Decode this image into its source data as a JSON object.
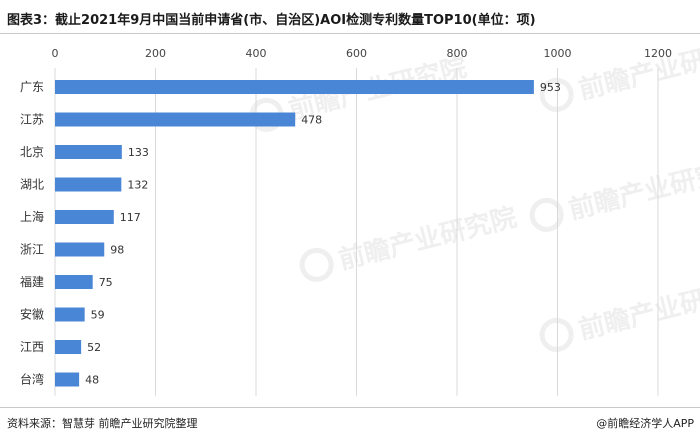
{
  "header": {
    "title": "图表3：截止2021年9月中国当前申请省(市、自治区)AOI检测专利数量TOP10(单位：项)"
  },
  "footer": {
    "source": "资料来源：智慧芽 前瞻产业研究院整理",
    "credit": "@前瞻经济学人APP"
  },
  "watermark": {
    "text": "前瞻产业研究院"
  },
  "colors": {
    "bar": "#4a86d6",
    "gridline": "#d9d9d9",
    "axis_text": "#444444"
  },
  "chart_data": {
    "type": "bar",
    "orientation": "horizontal",
    "categories": [
      "广东",
      "江苏",
      "北京",
      "湖北",
      "上海",
      "浙江",
      "福建",
      "安徽",
      "江西",
      "台湾"
    ],
    "values": [
      953,
      478,
      133,
      132,
      117,
      98,
      75,
      59,
      52,
      48
    ],
    "xlim": [
      0,
      1200
    ],
    "xticks": [
      0,
      200,
      400,
      600,
      800,
      1000,
      1200
    ],
    "x_axis_position": "top",
    "grid": true,
    "data_labels": true,
    "legend": false
  }
}
